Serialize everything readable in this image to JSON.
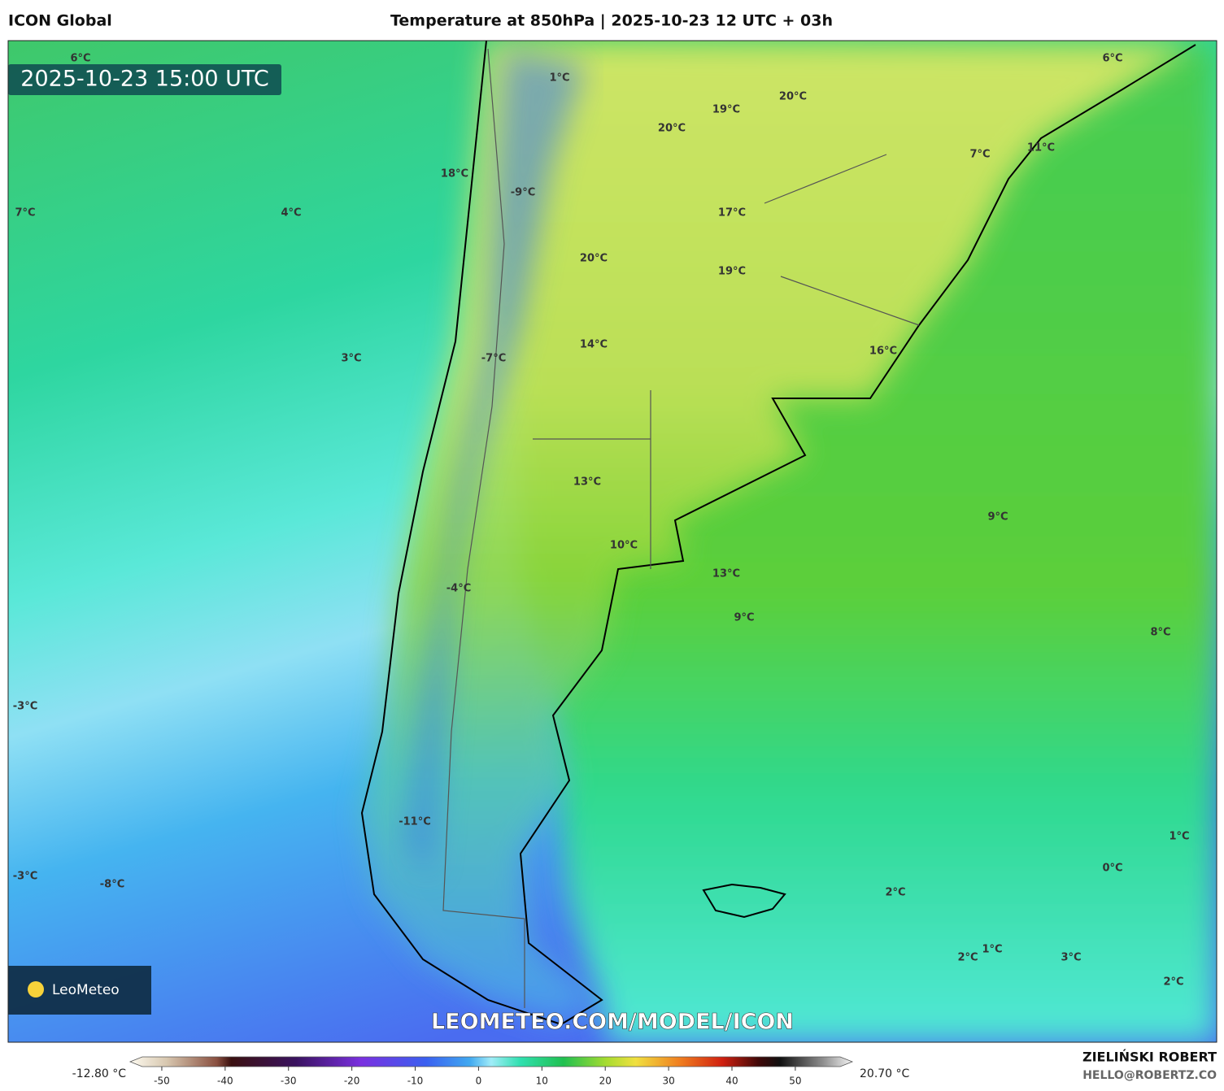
{
  "header": {
    "model": "ICON Global",
    "title": "Temperature at 850hPa | 2025-10-23 12 UTC + 03h"
  },
  "map": {
    "timestamp": "2025-10-23 15:00 UTC",
    "watermark": "LEOMETEO.COM/MODEL/ICON",
    "logo": "LeoMeteo",
    "labels": [
      "6°C",
      "1°C",
      "19°C",
      "20°C",
      "6°C",
      "20°C",
      "7°C",
      "11°C",
      "18°C",
      "-9°C",
      "7°C",
      "4°C",
      "17°C",
      "20°C",
      "19°C",
      "3°C",
      "-7°C",
      "14°C",
      "16°C",
      "13°C",
      "9°C",
      "10°C",
      "13°C",
      "-4°C",
      "9°C",
      "8°C",
      "-3°C",
      "-11°C",
      "1°C",
      "0°C",
      "-3°C",
      "-8°C",
      "2°C",
      "2°C",
      "1°C",
      "3°C",
      "2°C"
    ]
  },
  "colorbar": {
    "min_label": "-12.80 °C",
    "max_label": "20.70 °C",
    "range": [
      -55,
      59
    ],
    "ticks": [
      -50,
      -40,
      -30,
      -20,
      -10,
      0,
      10,
      20,
      30,
      40,
      50
    ]
  },
  "footer": {
    "author": "ZIELIŃSKI ROBERT",
    "email": "HELLO@ROBERTZ.CO"
  }
}
